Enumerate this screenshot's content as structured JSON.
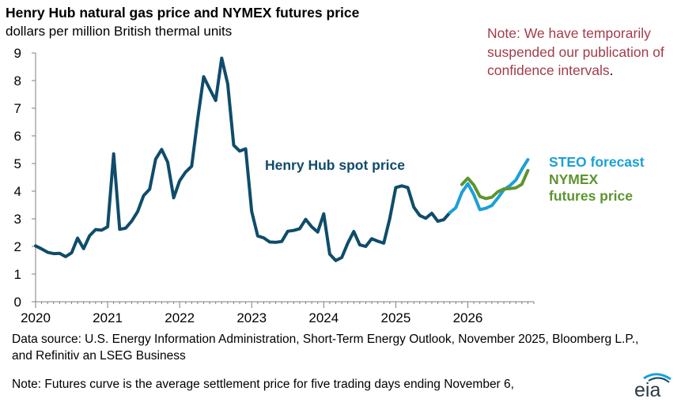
{
  "header": {
    "title": "Henry Hub natural gas price and NYMEX futures price",
    "subtitle": "dollars per million British thermal units"
  },
  "note_box": {
    "text": "Note: We have temporarily suspended our publication of confidence intervals",
    "period": "."
  },
  "footer": {
    "source": "Data source: U.S. Energy Information Administration, Short-Term Energy Outlook, November 2025, Bloomberg L.P., and Refinitiv an LSEG Business",
    "futures_note": "Note: Futures curve is the average settlement price for five trading days ending November 6,"
  },
  "logo": {
    "text": "eia"
  },
  "colors": {
    "spot": "#0f4c6b",
    "forecast": "#1ba0d8",
    "nymex": "#5e9430",
    "note": "#a33c4a"
  },
  "chart_data": {
    "type": "line",
    "title": "Henry Hub natural gas price and NYMEX futures price",
    "ylabel": "dollars per million British thermal units",
    "ylim": [
      0,
      9
    ],
    "yticks": [
      "0",
      "1",
      "2",
      "3",
      "4",
      "5",
      "6",
      "7",
      "8",
      "9"
    ],
    "xlim": [
      2020,
      2026.917
    ],
    "xticks": [
      "2020",
      "2021",
      "2022",
      "2023",
      "2024",
      "2025",
      "2026"
    ],
    "grid": false,
    "series": [
      {
        "name": "Henry Hub spot price",
        "label": "Henry Hub spot price",
        "color": "#0f4c6b",
        "start": 2020,
        "step": 0.08333,
        "values": [
          2.02,
          1.91,
          1.79,
          1.74,
          1.75,
          1.63,
          1.77,
          2.3,
          1.92,
          2.39,
          2.61,
          2.59,
          2.71,
          5.35,
          2.62,
          2.66,
          2.91,
          3.26,
          3.84,
          4.07,
          5.16,
          5.51,
          5.05,
          3.76,
          4.38,
          4.69,
          4.9,
          6.6,
          8.14,
          7.7,
          7.28,
          8.81,
          7.88,
          5.66,
          5.45,
          5.53,
          3.27,
          2.38,
          2.31,
          2.16,
          2.15,
          2.18,
          2.55,
          2.58,
          2.64,
          2.98,
          2.71,
          2.52,
          3.18,
          1.72,
          1.49,
          1.6,
          2.12,
          2.54,
          2.06,
          2.0,
          2.28,
          2.19,
          2.12,
          3.01,
          4.13,
          4.19,
          4.13,
          3.42,
          3.12,
          3.02,
          3.2,
          2.91,
          2.97,
          3.22
        ]
      },
      {
        "name": "STEO forecast",
        "label": "STEO forecast",
        "color": "#1ba0d8",
        "start": 2025.75,
        "step": 0.08333,
        "values": [
          3.22,
          3.4,
          3.95,
          4.27,
          3.87,
          3.33,
          3.38,
          3.48,
          3.75,
          4.05,
          4.2,
          4.4,
          4.79,
          5.14
        ]
      },
      {
        "name": "NYMEX futures price",
        "label_lines": [
          "NYMEX",
          "futures price"
        ],
        "color": "#5e9430",
        "start": 2025.917,
        "step": 0.08333,
        "values": [
          4.24,
          4.47,
          4.22,
          3.81,
          3.73,
          3.78,
          3.98,
          4.08,
          4.09,
          4.12,
          4.25,
          4.75
        ]
      }
    ]
  }
}
